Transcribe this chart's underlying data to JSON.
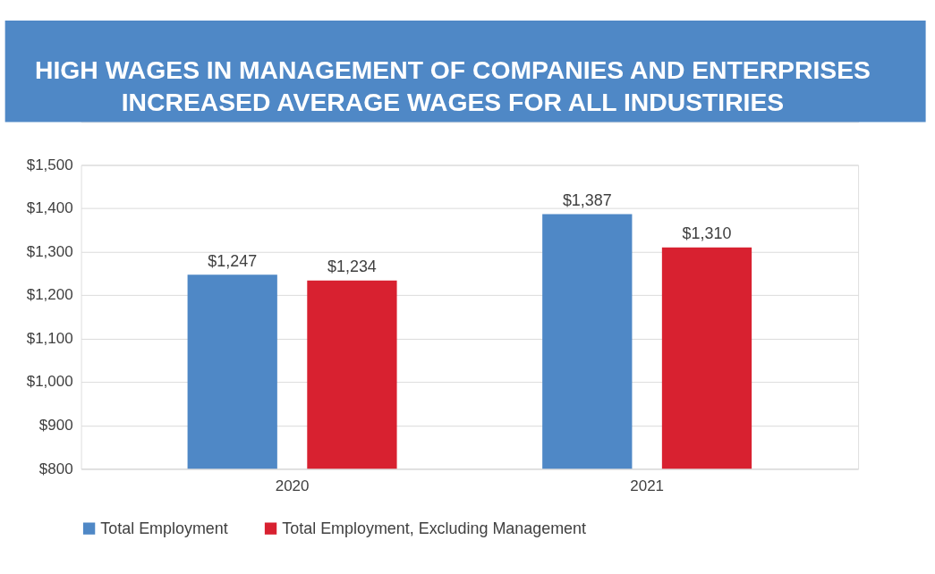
{
  "chart_data": {
    "type": "bar",
    "title": "HIGH WAGES IN MANAGEMENT OF COMPANIES AND ENTERPRISES\nINCREASED AVERAGE WAGES FOR ALL INDUSTIRIES",
    "categories": [
      "2020",
      "2021"
    ],
    "series": [
      {
        "name": "Total Employment",
        "color": "#4f88c6",
        "values": [
          1247,
          1387
        ],
        "value_labels": [
          "$1,247",
          "$1,387"
        ]
      },
      {
        "name": "Total Employment, Excluding Management",
        "color": "#d82130",
        "values": [
          1234,
          1310
        ],
        "value_labels": [
          "$1,234",
          "$1,310"
        ]
      }
    ],
    "ylim": [
      800,
      1500
    ],
    "yticks": [
      {
        "value": 800,
        "label": "$800"
      },
      {
        "value": 900,
        "label": "$900"
      },
      {
        "value": 1000,
        "label": "$1,000"
      },
      {
        "value": 1100,
        "label": "$1,100"
      },
      {
        "value": 1200,
        "label": "$1,200"
      },
      {
        "value": 1300,
        "label": "$1,300"
      },
      {
        "value": 1400,
        "label": "$1,400"
      },
      {
        "value": 1500,
        "label": "$1,500"
      }
    ],
    "grid": "y",
    "legend": "bottom"
  }
}
